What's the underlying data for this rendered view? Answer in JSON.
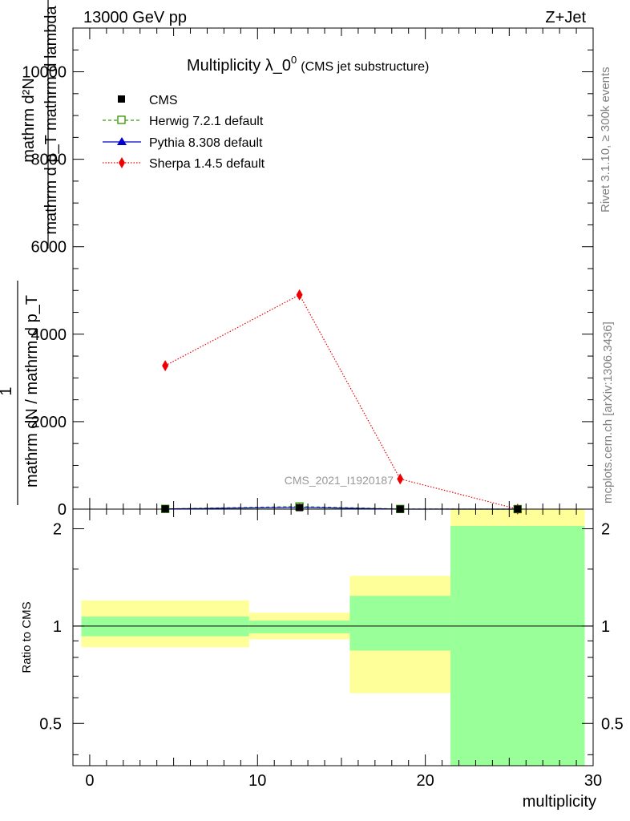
{
  "header": {
    "left": "13000 GeV pp",
    "right": "Z+Jet"
  },
  "title": {
    "main": "Multiplicity λ_0",
    "sup": "0",
    "sub": "(CMS jet substructure)"
  },
  "side_labels": {
    "rivet": "Rivet 3.1.10, ≥ 300k events",
    "mcplots": "mcplots.cern.ch [arXiv:1306.3436]"
  },
  "watermark": "CMS_2021_I1920187",
  "colors": {
    "cms": "#000000",
    "herwig": "#3f9b0b",
    "pythia": "#0000cc",
    "sherpa": "#ee0000",
    "band_outer": "#ffff99",
    "band_inner": "#99ff99"
  },
  "chart_data": [
    {
      "type": "line",
      "name": "main",
      "ylabel_top": "mathrm d²N",
      "ylabel_top_sub": "mathrm d p_T mathrm d lambda",
      "ylabel_one": "1",
      "ylabel_bottom": "mathrm dN / mathrm d p_T",
      "xlim": [
        -1,
        30
      ],
      "ylim": [
        0,
        11000
      ],
      "y_ticks": [
        0,
        2000,
        4000,
        6000,
        8000,
        10000
      ],
      "y_tick_labels": [
        "0",
        "2000",
        "4000",
        "6000",
        "8000",
        "10000"
      ],
      "legend_position": "top-left",
      "series": [
        {
          "name": "CMS",
          "marker": "square",
          "x": [
            4.5,
            12.5,
            18.5,
            25.5
          ],
          "y": [
            5,
            35,
            0,
            0
          ]
        },
        {
          "name": "Herwig 7.2.1 default",
          "marker": "open-square",
          "line": "dashed",
          "x": [
            4.5,
            12.5,
            18.5,
            25.5
          ],
          "y": [
            5,
            60,
            3,
            0
          ]
        },
        {
          "name": "Pythia 8.308 default",
          "marker": "triangle",
          "line": "solid",
          "x": [
            4.5,
            12.5,
            18.5,
            25.5
          ],
          "y": [
            5,
            40,
            0,
            0
          ]
        },
        {
          "name": "Sherpa 1.4.5 default",
          "marker": "diamond",
          "line": "dotted",
          "x": [
            4.5,
            12.5,
            18.5,
            25.5
          ],
          "y": [
            3280,
            4900,
            690,
            0
          ]
        }
      ]
    },
    {
      "type": "area",
      "name": "ratio",
      "ylabel": "Ratio to CMS",
      "xlabel": "multiplicity",
      "xlim": [
        -1,
        30
      ],
      "ylim": [
        0.37,
        2.3
      ],
      "x_ticks": [
        0,
        10,
        20,
        30
      ],
      "x_tick_labels": [
        "0",
        "10",
        "20",
        "30"
      ],
      "y_ticks": [
        0.5,
        1,
        2
      ],
      "y_tick_labels": [
        "0.5",
        "1",
        "2"
      ],
      "bins": [
        {
          "lo": -0.5,
          "hi": 9.5,
          "inner": [
            0.93,
            1.07
          ],
          "outer": [
            0.86,
            1.2
          ]
        },
        {
          "lo": 9.5,
          "hi": 15.5,
          "inner": [
            0.95,
            1.04
          ],
          "outer": [
            0.91,
            1.1
          ]
        },
        {
          "lo": 15.5,
          "hi": 21.5,
          "inner": [
            0.84,
            1.24
          ],
          "outer": [
            0.62,
            1.43
          ]
        },
        {
          "lo": 21.5,
          "hi": 29.5,
          "inner": [
            0.37,
            2.04
          ],
          "outer": [
            0.37,
            2.3
          ]
        }
      ]
    }
  ]
}
